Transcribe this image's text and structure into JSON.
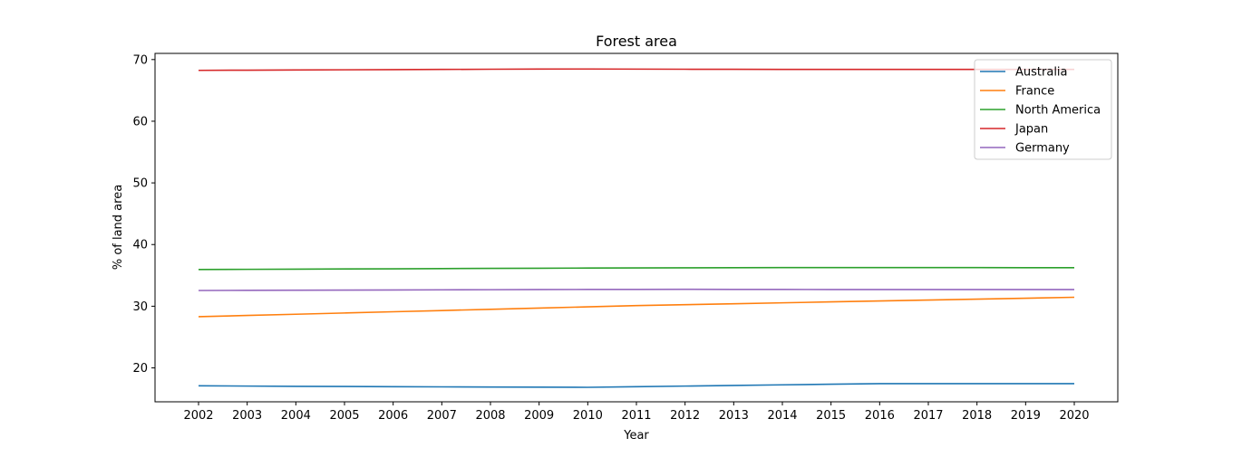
{
  "chart_data": {
    "type": "line",
    "title": "Forest area",
    "xlabel": "Year",
    "ylabel": "% of land area",
    "x": [
      "2002",
      "2003",
      "2004",
      "2005",
      "2006",
      "2007",
      "2008",
      "2009",
      "2010",
      "2011",
      "2012",
      "2013",
      "2014",
      "2015",
      "2016",
      "2017",
      "2018",
      "2019",
      "2020"
    ],
    "ylim": [
      14.5,
      71
    ],
    "yticks": [
      20,
      30,
      40,
      50,
      60,
      70
    ],
    "grid": false,
    "legend_position": "top-right",
    "series": [
      {
        "name": "Australia",
        "color": "#1f77b4",
        "values": [
          17.1,
          17.05,
          17.0,
          16.98,
          16.95,
          16.92,
          16.9,
          16.87,
          16.85,
          16.95,
          17.05,
          17.15,
          17.25,
          17.35,
          17.45,
          17.45,
          17.45,
          17.45,
          17.45
        ]
      },
      {
        "name": "France",
        "color": "#ff7f0e",
        "values": [
          28.3,
          28.5,
          28.7,
          28.9,
          29.1,
          29.3,
          29.5,
          29.7,
          29.9,
          30.1,
          30.25,
          30.4,
          30.55,
          30.7,
          30.85,
          31.0,
          31.15,
          31.3,
          31.45
        ]
      },
      {
        "name": "North America",
        "color": "#2ca02c",
        "values": [
          35.95,
          35.98,
          36.01,
          36.04,
          36.07,
          36.1,
          36.13,
          36.16,
          36.19,
          36.21,
          36.23,
          36.25,
          36.26,
          36.27,
          36.27,
          36.26,
          36.26,
          36.25,
          36.25
        ]
      },
      {
        "name": "Japan",
        "color": "#d62728",
        "values": [
          68.25,
          68.28,
          68.31,
          68.34,
          68.37,
          68.4,
          68.43,
          68.46,
          68.47,
          68.45,
          68.43,
          68.42,
          68.41,
          68.4,
          68.4,
          68.4,
          68.4,
          68.4,
          68.4
        ]
      },
      {
        "name": "Germany",
        "color": "#9467bd",
        "values": [
          32.55,
          32.58,
          32.6,
          32.62,
          32.64,
          32.66,
          32.68,
          32.7,
          32.72,
          32.73,
          32.74,
          32.73,
          32.72,
          32.71,
          32.7,
          32.7,
          32.7,
          32.7,
          32.7
        ]
      }
    ]
  }
}
